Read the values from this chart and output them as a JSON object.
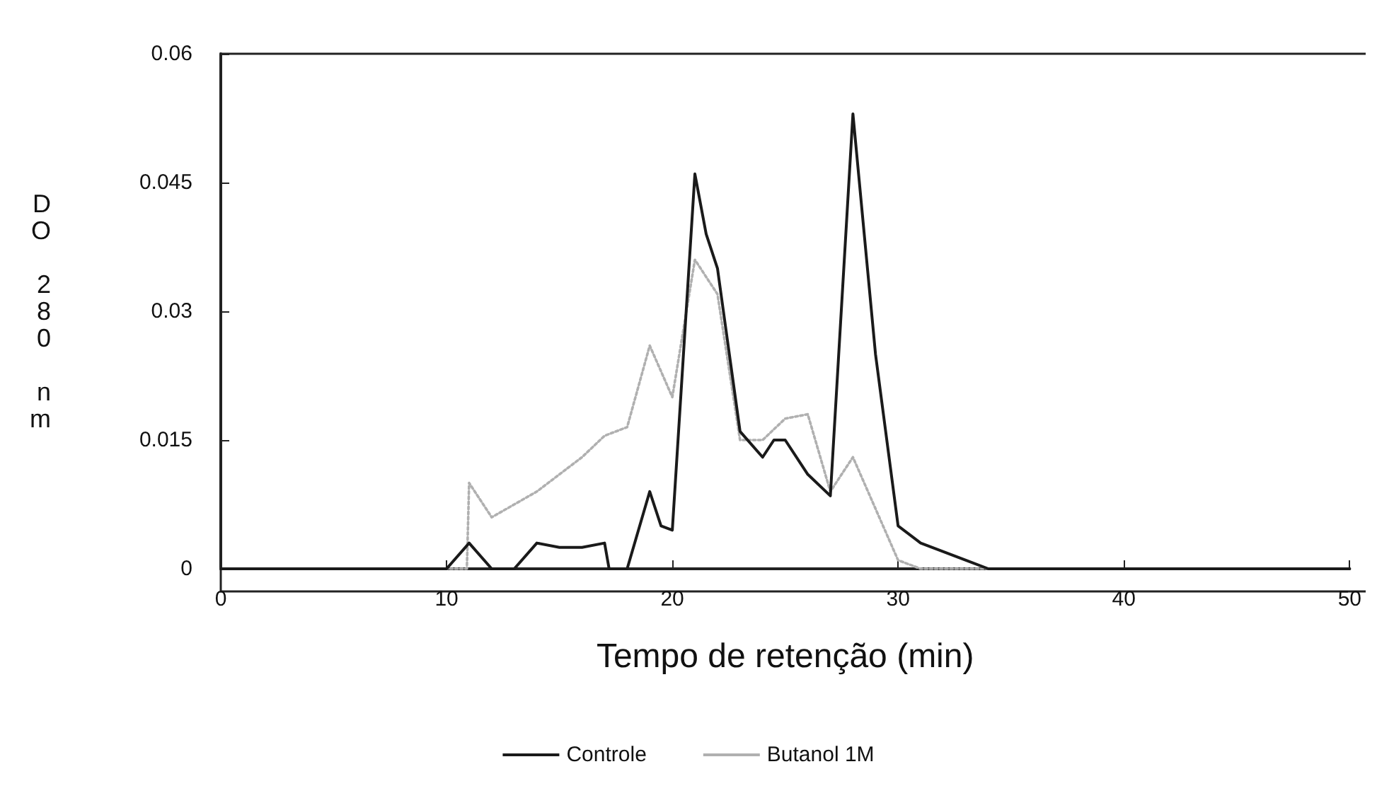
{
  "chart_data": {
    "type": "line",
    "xlabel": "Tempo de retenção (min)",
    "ylabel": "DO 280 nm",
    "xlim": [
      0,
      50
    ],
    "xticks": [
      0,
      10,
      20,
      30,
      40,
      50
    ],
    "ylim": [
      0,
      0.06
    ],
    "yticks": [
      0,
      0.015,
      0.03,
      0.045,
      0.06
    ],
    "grid": false,
    "legend": "bottom",
    "marker": "none",
    "series": [
      {
        "name": "Controle",
        "color": "#1a1a1a",
        "line_style": "solid",
        "x": [
          0,
          10,
          11,
          12,
          13,
          14,
          15,
          16,
          17,
          17.2,
          18,
          19,
          19.5,
          20,
          21,
          21.5,
          22,
          23,
          24,
          24.5,
          25,
          26,
          27,
          28,
          29,
          30,
          31,
          33,
          34,
          50
        ],
        "values": [
          0,
          0,
          0.003,
          0,
          0,
          0.003,
          0.0025,
          0.0025,
          0.003,
          0,
          0,
          0.009,
          0.005,
          0.0045,
          0.046,
          0.039,
          0.035,
          0.016,
          0.013,
          0.015,
          0.015,
          0.011,
          0.0085,
          0.053,
          0.025,
          0.005,
          0.003,
          0.001,
          0,
          0
        ]
      },
      {
        "name": "Butanol 1M",
        "color": "#b0b0b0",
        "line_style": "dotted",
        "x": [
          0,
          10.9,
          11,
          12,
          13,
          14,
          15,
          16,
          17,
          18,
          19,
          20,
          21,
          22,
          23,
          24,
          25,
          26,
          27,
          28,
          29,
          30,
          31,
          50
        ],
        "values": [
          0,
          0,
          0.01,
          0.006,
          0.0075,
          0.009,
          0.011,
          0.013,
          0.0155,
          0.0165,
          0.026,
          0.02,
          0.036,
          0.032,
          0.015,
          0.015,
          0.0175,
          0.018,
          0.009,
          0.013,
          0.007,
          0.001,
          0,
          0
        ]
      }
    ]
  }
}
